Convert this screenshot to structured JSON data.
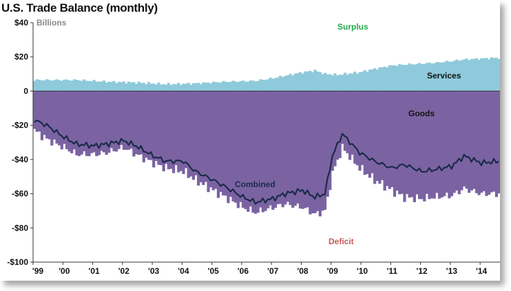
{
  "title": "U.S. Trade Balance (monthly)",
  "chart_data": {
    "type": "area",
    "title": "U.S. Trade Balance (monthly)",
    "unit_label": "Billions",
    "ylim": [
      -100,
      40
    ],
    "y_ticks": [
      40,
      20,
      0,
      -20,
      -40,
      -60,
      -80,
      -100
    ],
    "y_tick_labels": [
      "$40",
      "$20",
      "0",
      "-$20",
      "-$40",
      "-$60",
      "-$80",
      "-$100"
    ],
    "x_tick_labels": [
      "'99",
      "'00",
      "'01",
      "'02",
      "'03",
      "'04",
      "'05",
      "'06",
      "'07",
      "'08",
      "'09",
      "'10",
      "'11",
      "'12",
      "'13",
      "'14"
    ],
    "x_range": [
      "1999-01",
      "2014-08"
    ],
    "grid": false,
    "annotations": {
      "surplus": "Surplus",
      "services": "Services",
      "goods": "Goods",
      "combined": "Combined",
      "deficit": "Deficit"
    },
    "colors": {
      "services": "#8ecadb",
      "goods": "#7b63a2",
      "goods_border": "#5b437f",
      "combined": "#1b2a48",
      "surplus_text": "#22a84a",
      "deficit_text": "#c85a5a",
      "unit_text": "#888888"
    },
    "series": [
      {
        "name": "Services",
        "anchor_dates": [
          "1999-01",
          "1999-06",
          "2000-06",
          "2001-06",
          "2002-06",
          "2003-06",
          "2004-06",
          "2005-06",
          "2006-06",
          "2007-01",
          "2007-06",
          "2008-01",
          "2008-06",
          "2008-10",
          "2009-03",
          "2009-12",
          "2010-06",
          "2011-01",
          "2011-06",
          "2012-06",
          "2013-01",
          "2013-06",
          "2014-08"
        ],
        "anchor_values": [
          6.5,
          6.5,
          6.5,
          5.5,
          5,
          4,
          4.5,
          5.5,
          6,
          7.5,
          9,
          11,
          12,
          10,
          9.5,
          11,
          13,
          15,
          15.5,
          16.5,
          17.5,
          18.5,
          19.5
        ]
      },
      {
        "name": "Goods",
        "anchor_dates": [
          "1999-01",
          "1999-06",
          "2000-01",
          "2000-06",
          "2001-01",
          "2001-06",
          "2002-01",
          "2002-06",
          "2003-01",
          "2003-06",
          "2004-01",
          "2004-06",
          "2005-01",
          "2005-06",
          "2006-01",
          "2006-06",
          "2007-01",
          "2007-06",
          "2008-01",
          "2008-06",
          "2008-10",
          "2009-01",
          "2009-05",
          "2009-12",
          "2010-06",
          "2011-01",
          "2011-06",
          "2012-01",
          "2012-06",
          "2013-01",
          "2013-06",
          "2014-01",
          "2014-08"
        ],
        "anchor_values": [
          -23,
          -28,
          -33,
          -37,
          -37,
          -36,
          -33,
          -37,
          -42,
          -45,
          -47,
          -52,
          -58,
          -62,
          -68,
          -71,
          -68,
          -66,
          -68,
          -72,
          -70,
          -48,
          -33,
          -45,
          -52,
          -58,
          -62,
          -63,
          -62,
          -61,
          -57,
          -60,
          -60
        ]
      },
      {
        "name": "Combined",
        "anchor_dates": [
          "1999-01",
          "1999-06",
          "2000-01",
          "2000-06",
          "2001-01",
          "2001-06",
          "2002-01",
          "2002-06",
          "2003-01",
          "2003-06",
          "2004-01",
          "2004-06",
          "2005-01",
          "2005-06",
          "2006-01",
          "2006-06",
          "2007-01",
          "2007-06",
          "2008-01",
          "2008-06",
          "2008-10",
          "2009-01",
          "2009-05",
          "2009-12",
          "2010-06",
          "2011-01",
          "2011-06",
          "2012-01",
          "2012-06",
          "2013-01",
          "2013-06",
          "2014-01",
          "2014-08"
        ],
        "anchor_values": [
          -17,
          -20,
          -27,
          -31,
          -32,
          -31,
          -29,
          -32,
          -38,
          -41,
          -41,
          -47,
          -52,
          -56,
          -62,
          -65,
          -63,
          -60,
          -58,
          -62,
          -60,
          -38,
          -25,
          -36,
          -41,
          -45,
          -43,
          -47,
          -46,
          -44,
          -38,
          -42,
          -41
        ]
      }
    ]
  }
}
